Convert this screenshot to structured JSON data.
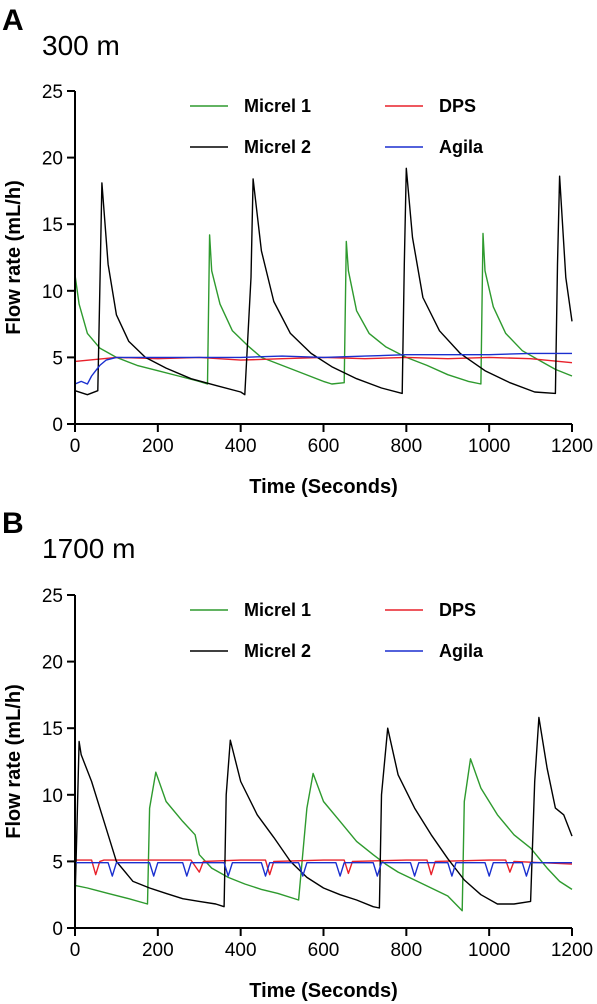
{
  "chart_data": [
    {
      "type": "line",
      "panel_label": "A",
      "title": "300 m",
      "xlabel": "Time (Seconds)",
      "ylabel": "Flow rate (mL/h)",
      "xlim": [
        0,
        1200
      ],
      "ylim": [
        0,
        25
      ],
      "xticks": [
        0,
        200,
        400,
        600,
        800,
        1000,
        1200
      ],
      "yticks": [
        0,
        5,
        10,
        15,
        20,
        25
      ],
      "grid": false,
      "legend_position": "top-center",
      "series": [
        {
          "name": "Micrel 1",
          "color": "#2e9a2e",
          "x": [
            0,
            10,
            30,
            60,
            100,
            150,
            200,
            250,
            300,
            320,
            325,
            330,
            350,
            380,
            420,
            450,
            500,
            550,
            600,
            620,
            650,
            655,
            660,
            680,
            710,
            750,
            800,
            850,
            900,
            950,
            980,
            985,
            990,
            1010,
            1040,
            1080,
            1120,
            1160,
            1200
          ],
          "y": [
            11.2,
            9,
            6.8,
            5.7,
            5.0,
            4.4,
            4.0,
            3.6,
            3.2,
            3.0,
            14.2,
            11.5,
            9.0,
            7.0,
            5.8,
            5.0,
            4.4,
            3.8,
            3.2,
            3.0,
            3.1,
            13.7,
            11.5,
            8.5,
            6.8,
            5.8,
            5.0,
            4.4,
            3.7,
            3.2,
            3.0,
            14.3,
            11.5,
            8.8,
            6.8,
            5.5,
            4.8,
            4.1,
            3.6
          ]
        },
        {
          "name": "DPS",
          "color": "#e8202a",
          "x": [
            0,
            100,
            200,
            300,
            400,
            500,
            600,
            700,
            800,
            900,
            1000,
            1100,
            1200
          ],
          "y": [
            4.7,
            5.0,
            4.9,
            5.0,
            4.8,
            4.9,
            5.0,
            4.9,
            5.0,
            4.9,
            5.0,
            4.9,
            4.6
          ]
        },
        {
          "name": "Micrel 2",
          "color": "#000000",
          "x": [
            0,
            30,
            55,
            60,
            65,
            80,
            100,
            130,
            170,
            220,
            280,
            340,
            400,
            410,
            425,
            430,
            450,
            480,
            520,
            570,
            620,
            680,
            740,
            790,
            795,
            800,
            815,
            840,
            880,
            930,
            990,
            1050,
            1110,
            1160,
            1165,
            1170,
            1185,
            1200
          ],
          "y": [
            2.5,
            2.2,
            2.5,
            10,
            18.1,
            12,
            8.2,
            6.2,
            5.0,
            4.2,
            3.4,
            2.9,
            2.4,
            2.2,
            11,
            18.4,
            13,
            9.2,
            6.8,
            5.3,
            4.3,
            3.4,
            2.7,
            2.3,
            12,
            19.2,
            14,
            9.5,
            7.0,
            5.3,
            4.0,
            3.1,
            2.4,
            2.3,
            12,
            18.6,
            11,
            7.7
          ]
        },
        {
          "name": "Agila",
          "color": "#1a2fcf",
          "x": [
            0,
            15,
            30,
            40,
            50,
            60,
            75,
            100,
            200,
            300,
            400,
            500,
            600,
            700,
            800,
            900,
            1000,
            1100,
            1200
          ],
          "y": [
            3.0,
            3.2,
            3.0,
            3.6,
            4.0,
            4.4,
            4.8,
            5.0,
            5.0,
            5.0,
            5.0,
            5.1,
            5.0,
            5.1,
            5.2,
            5.2,
            5.2,
            5.3,
            5.3
          ]
        }
      ]
    },
    {
      "type": "line",
      "panel_label": "B",
      "title": "1700 m",
      "xlabel": "Time (Seconds)",
      "ylabel": "Flow rate (mL/h)",
      "xlim": [
        0,
        1200
      ],
      "ylim": [
        0,
        25
      ],
      "xticks": [
        0,
        200,
        400,
        600,
        800,
        1000,
        1200
      ],
      "yticks": [
        0,
        5,
        10,
        15,
        20,
        25
      ],
      "grid": false,
      "legend_position": "top-center",
      "series": [
        {
          "name": "Micrel 1",
          "color": "#2e9a2e",
          "x": [
            0,
            30,
            80,
            130,
            175,
            180,
            195,
            220,
            260,
            290,
            300,
            330,
            370,
            410,
            450,
            490,
            540,
            560,
            575,
            600,
            640,
            680,
            720,
            750,
            780,
            820,
            860,
            900,
            935,
            940,
            955,
            980,
            1020,
            1060,
            1100,
            1140,
            1170,
            1200
          ],
          "y": [
            3.2,
            3.0,
            2.6,
            2.2,
            1.8,
            9.0,
            11.7,
            9.5,
            8.0,
            7.0,
            5.5,
            4.5,
            3.8,
            3.3,
            2.9,
            2.6,
            2.1,
            9.0,
            11.6,
            9.5,
            8.0,
            6.5,
            5.5,
            4.8,
            4.2,
            3.6,
            3.0,
            2.4,
            1.3,
            9.5,
            12.7,
            10.5,
            8.5,
            7.0,
            6.0,
            4.5,
            3.5,
            2.9
          ]
        },
        {
          "name": "DPS",
          "color": "#e8202a",
          "x": [
            0,
            40,
            50,
            60,
            70,
            100,
            200,
            280,
            300,
            310,
            400,
            460,
            470,
            480,
            600,
            650,
            660,
            670,
            800,
            850,
            860,
            870,
            1000,
            1040,
            1050,
            1060,
            1200
          ],
          "y": [
            5.1,
            5.1,
            4.0,
            5.0,
            5.1,
            5.1,
            5.1,
            5.1,
            4.2,
            5.0,
            5.1,
            5.1,
            4.0,
            5.0,
            5.1,
            5.1,
            4.1,
            5.0,
            5.1,
            5.1,
            4.0,
            5.0,
            5.1,
            5.1,
            4.2,
            5.0,
            4.8
          ]
        },
        {
          "name": "Micrel 2",
          "color": "#000000",
          "x": [
            0,
            5,
            10,
            15,
            40,
            70,
            100,
            140,
            180,
            220,
            260,
            300,
            340,
            360,
            365,
            375,
            400,
            440,
            480,
            520,
            560,
            600,
            640,
            680,
            720,
            735,
            740,
            755,
            780,
            820,
            860,
            900,
            940,
            980,
            1020,
            1060,
            1100,
            1110,
            1120,
            1140,
            1160,
            1180,
            1200
          ],
          "y": [
            2.0,
            8,
            14.0,
            13.0,
            11.0,
            8.0,
            5.0,
            3.5,
            3.0,
            2.6,
            2.2,
            2.0,
            1.8,
            1.6,
            10,
            14.1,
            11,
            8.5,
            6.8,
            5.0,
            3.8,
            3.0,
            2.5,
            2.1,
            1.6,
            1.5,
            10,
            15.0,
            11.5,
            9.0,
            7.0,
            5.2,
            3.6,
            2.5,
            1.8,
            1.8,
            2.0,
            11,
            15.8,
            12,
            9.0,
            8.5,
            6.9
          ]
        },
        {
          "name": "Agila",
          "color": "#1a2fcf",
          "x": [
            0,
            80,
            90,
            100,
            180,
            190,
            200,
            260,
            270,
            280,
            360,
            370,
            380,
            450,
            460,
            470,
            540,
            550,
            560,
            630,
            640,
            650,
            720,
            730,
            740,
            810,
            820,
            830,
            900,
            910,
            920,
            990,
            1000,
            1010,
            1080,
            1090,
            1100,
            1200
          ],
          "y": [
            4.9,
            4.9,
            3.9,
            4.9,
            4.9,
            3.9,
            4.9,
            4.9,
            3.9,
            4.9,
            4.9,
            3.9,
            4.9,
            4.9,
            3.9,
            4.9,
            4.9,
            3.9,
            4.9,
            4.9,
            3.9,
            4.9,
            4.9,
            3.9,
            4.9,
            4.9,
            3.9,
            4.9,
            4.9,
            3.9,
            4.9,
            4.9,
            3.9,
            4.9,
            4.9,
            3.9,
            4.9,
            4.9
          ]
        }
      ]
    }
  ]
}
